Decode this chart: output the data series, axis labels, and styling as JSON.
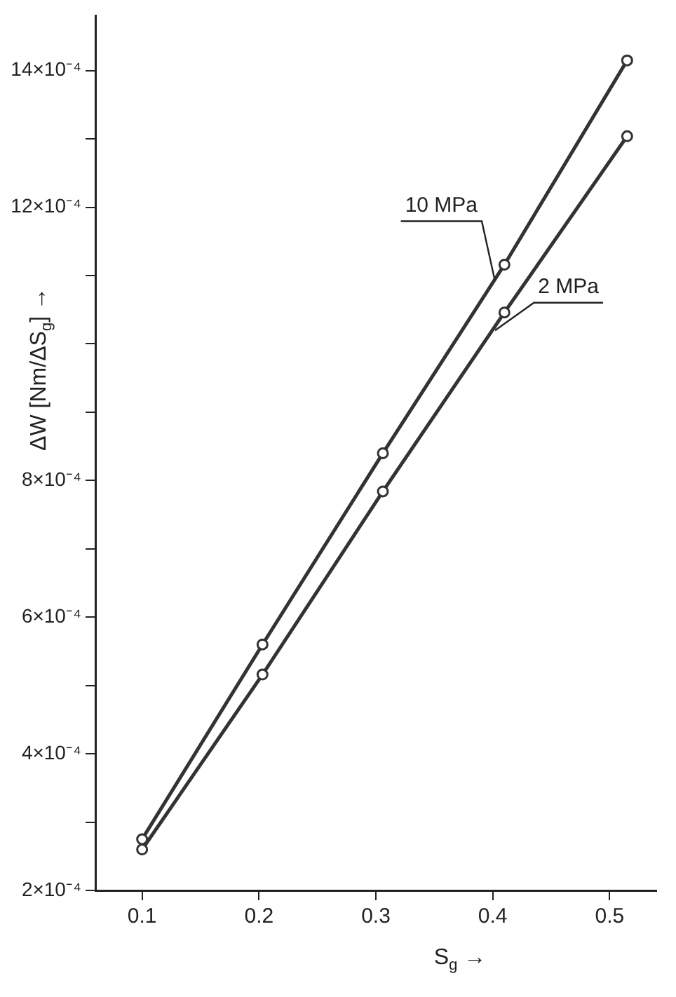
{
  "chart_data": {
    "type": "line",
    "xlabel": "S$_{g}$ →",
    "ylabel": "ΔW [Nm/ΔS$_{g}$] →",
    "x": [
      0.1,
      0.203,
      0.306,
      0.41,
      0.515
    ],
    "series": [
      {
        "name": "10 MPa",
        "color": "#333333",
        "values": [
          0.000275,
          0.00056,
          0.00084,
          0.001116,
          0.001415
        ]
      },
      {
        "name": "2 MPa",
        "color": "#333333",
        "values": [
          0.00026,
          0.000516,
          0.000784,
          0.001046,
          0.001304
        ]
      }
    ],
    "xlim": [
      0.06,
      0.54
    ],
    "xticks": [
      0.1,
      0.2,
      0.3,
      0.4,
      0.5
    ],
    "ylim": [
      0.0002,
      0.00148
    ],
    "yticks": [
      {
        "value": 0.0002,
        "label": "2×10⁻⁴"
      },
      {
        "value": 0.0003,
        "label": null
      },
      {
        "value": 0.0004,
        "label": "4×10⁻⁴"
      },
      {
        "value": 0.0005,
        "label": null
      },
      {
        "value": 0.0006,
        "label": "6×10⁻⁴"
      },
      {
        "value": 0.0007,
        "label": null
      },
      {
        "value": 0.0008,
        "label": "8×10⁻⁴"
      },
      {
        "value": 0.0009,
        "label": null
      },
      {
        "value": 0.001,
        "label": null
      },
      {
        "value": 0.0011,
        "label": null
      },
      {
        "value": 0.0012,
        "label": "12×10⁻⁴"
      },
      {
        "value": 0.0013,
        "label": null
      },
      {
        "value": 0.0014,
        "label": "14×10⁻⁴"
      }
    ],
    "marker": "circle",
    "line_style": "solid",
    "legend": false
  }
}
